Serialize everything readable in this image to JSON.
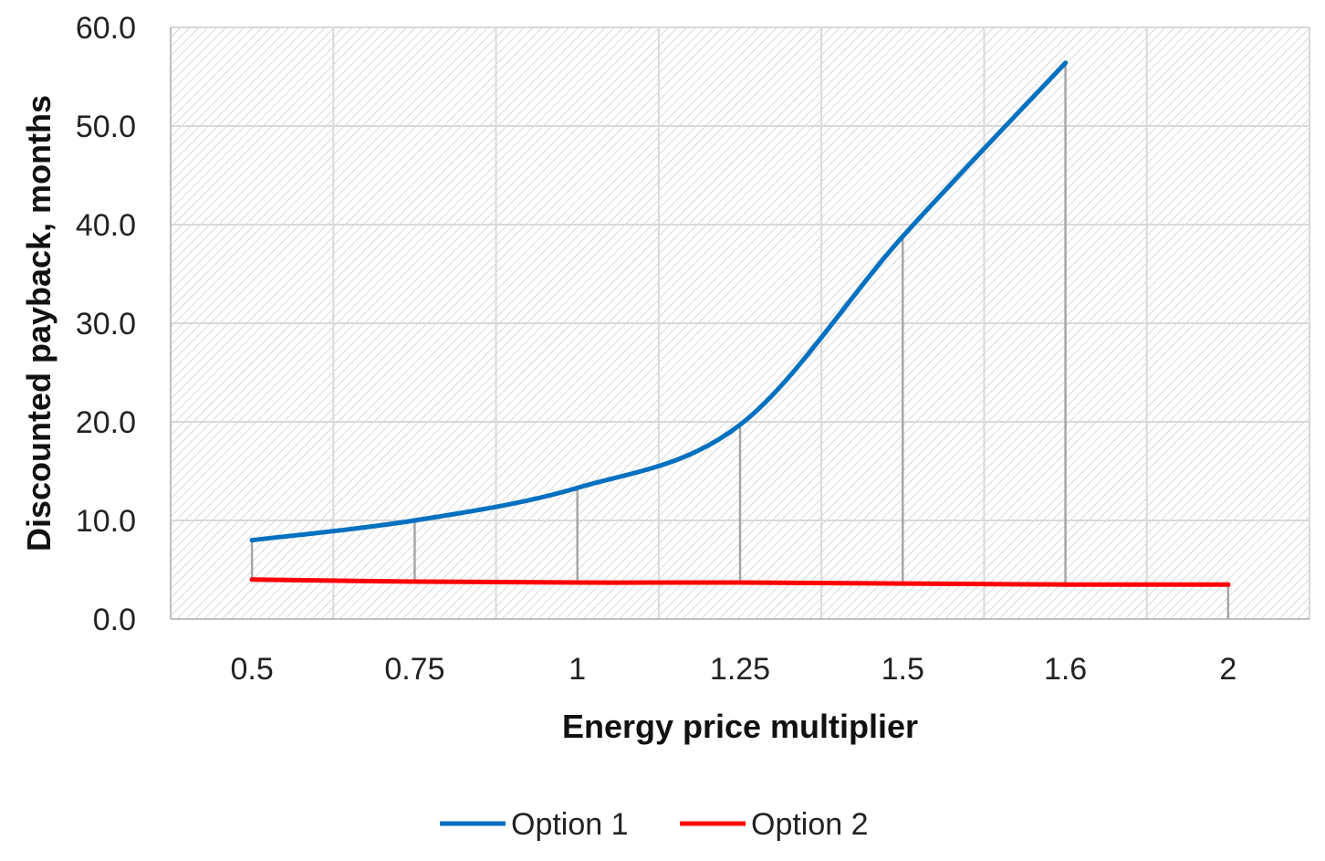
{
  "chart_data": {
    "type": "line",
    "title": "",
    "xlabel": "Energy price multiplier",
    "ylabel": "Discounted payback, months",
    "categories": [
      "0.5",
      "0.75",
      "1",
      "1.25",
      "1.5",
      "1.6",
      "2"
    ],
    "y_ticks": [
      "0.0",
      "10.0",
      "20.0",
      "30.0",
      "40.0",
      "50.0",
      "60.0"
    ],
    "ylim": [
      0,
      60
    ],
    "grid": true,
    "drop_lines": true,
    "smoothed": true,
    "legend_position": "bottom",
    "series": [
      {
        "name": "Option 1",
        "color": "#0070C0",
        "values": [
          8.0,
          10.0,
          13.3,
          19.7,
          38.8,
          56.4,
          null
        ]
      },
      {
        "name": "Option 2",
        "color": "#FF0000",
        "values": [
          4.0,
          3.8,
          3.7,
          3.7,
          3.6,
          3.5,
          3.5
        ]
      }
    ]
  }
}
